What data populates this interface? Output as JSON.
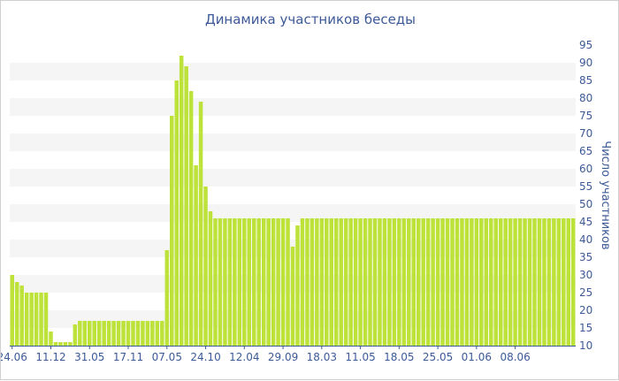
{
  "chart_data": {
    "type": "bar",
    "title": "Динамика участников беседы",
    "xlabel": "",
    "ylabel": "Число участников",
    "ylim": [
      10,
      95
    ],
    "y_ticks": [
      10,
      15,
      20,
      25,
      30,
      35,
      40,
      45,
      50,
      55,
      60,
      65,
      70,
      75,
      80,
      85,
      90,
      95
    ],
    "y_axis_side": "right",
    "bar_color": "#bde23a",
    "band_color": "#f5f5f5",
    "x_tick_labels": [
      {
        "label": "24.06",
        "index": 0
      },
      {
        "label": "11.12",
        "index": 8
      },
      {
        "label": "31.05",
        "index": 16
      },
      {
        "label": "17.11",
        "index": 24
      },
      {
        "label": "07.05",
        "index": 32
      },
      {
        "label": "24.10",
        "index": 40
      },
      {
        "label": "12.04",
        "index": 48
      },
      {
        "label": "29.09",
        "index": 56
      },
      {
        "label": "18.03",
        "index": 64
      },
      {
        "label": "11.05",
        "index": 72
      },
      {
        "label": "18.05",
        "index": 80
      },
      {
        "label": "25.05",
        "index": 88
      },
      {
        "label": "01.06",
        "index": 96
      },
      {
        "label": "08.06",
        "index": 104
      }
    ],
    "values": [
      30,
      28,
      27,
      25,
      25,
      25,
      25,
      25,
      14,
      11,
      11,
      11,
      11,
      16,
      17,
      17,
      17,
      17,
      17,
      17,
      17,
      17,
      17,
      17,
      17,
      17,
      17,
      17,
      17,
      17,
      17,
      17,
      37,
      75,
      85,
      92,
      89,
      82,
      61,
      79,
      55,
      48,
      46,
      46,
      46,
      46,
      46,
      46,
      46,
      46,
      46,
      46,
      46,
      46,
      46,
      46,
      46,
      46,
      38,
      44,
      46,
      46,
      46,
      46,
      46,
      46,
      46,
      46,
      46,
      46,
      46,
      46,
      46,
      46,
      46,
      46,
      46,
      46,
      46,
      46,
      46,
      46,
      46,
      46,
      46,
      46,
      46,
      46,
      46,
      46,
      46,
      46,
      46,
      46,
      46,
      46,
      46,
      46,
      46,
      46,
      46,
      46,
      46,
      46,
      46,
      46,
      46,
      46,
      46,
      46,
      46,
      46,
      46,
      46,
      46,
      46,
      46
    ]
  }
}
